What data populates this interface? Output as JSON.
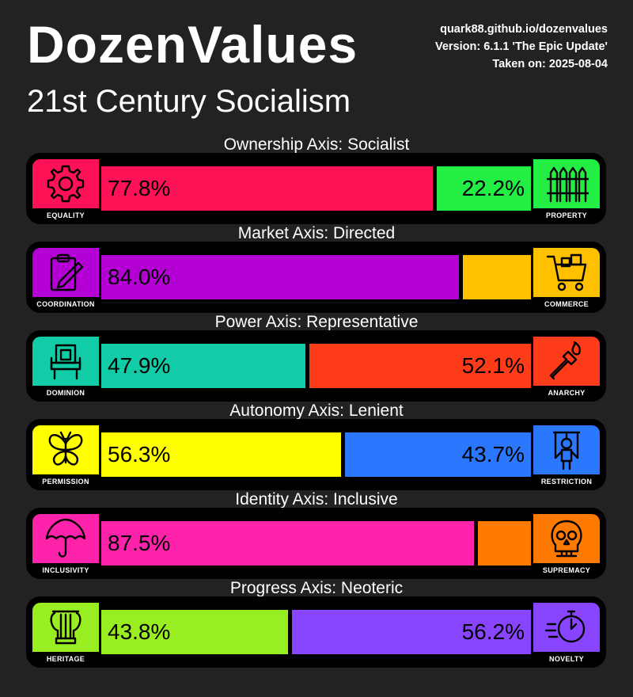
{
  "header": {
    "title": "DozenValues",
    "subtitle": "21st Century Socialism",
    "site": "quark88.github.io/dozenvalues",
    "version": "Version: 6.1.1 'The Epic Update'",
    "taken": "Taken on: 2025-08-04"
  },
  "chart_data": {
    "type": "bar",
    "orientation": "horizontal-stacked-100",
    "axes": [
      {
        "label": "Ownership Axis: Socialist",
        "left": {
          "name": "EQUALITY",
          "value": 77.8,
          "text": "77.8%",
          "color": "#ff1155",
          "icon": "gear-icon"
        },
        "right": {
          "name": "PROPERTY",
          "value": 22.2,
          "text": "22.2%",
          "color": "#22ee44",
          "icon": "fence-icon"
        }
      },
      {
        "label": "Market Axis: Directed",
        "left": {
          "name": "COORDINATION",
          "value": 84.0,
          "text": "84.0%",
          "color": "#b400d4",
          "icon": "clipboard-icon"
        },
        "right": {
          "name": "COMMERCE",
          "value": 16.0,
          "text": "",
          "color": "#ffc000",
          "icon": "shopping-cart-icon"
        }
      },
      {
        "label": "Power Axis: Representative",
        "left": {
          "name": "DOMINION",
          "value": 47.9,
          "text": "47.9%",
          "color": "#11cca6",
          "icon": "throne-icon"
        },
        "right": {
          "name": "ANARCHY",
          "value": 52.1,
          "text": "52.1%",
          "color": "#ff3c1a",
          "icon": "molotov-icon"
        }
      },
      {
        "label": "Autonomy Axis: Lenient",
        "left": {
          "name": "PERMISSION",
          "value": 56.3,
          "text": "56.3%",
          "color": "#ffff00",
          "icon": "butterfly-icon"
        },
        "right": {
          "name": "RESTRICTION",
          "value": 43.7,
          "text": "43.7%",
          "color": "#2b78ff",
          "icon": "puppet-icon"
        }
      },
      {
        "label": "Identity Axis: Inclusive",
        "left": {
          "name": "INCLUSIVITY",
          "value": 87.5,
          "text": "87.5%",
          "color": "#ff22aa",
          "icon": "umbrella-icon"
        },
        "right": {
          "name": "SUPREMACY",
          "value": 12.5,
          "text": "",
          "color": "#ff7a00",
          "icon": "skull-icon"
        }
      },
      {
        "label": "Progress Axis: Neoteric",
        "left": {
          "name": "HERITAGE",
          "value": 43.8,
          "text": "43.8%",
          "color": "#99ee22",
          "icon": "lyre-icon"
        },
        "right": {
          "name": "NOVELTY",
          "value": 56.2,
          "text": "56.2%",
          "color": "#8844ff",
          "icon": "stopwatch-icon"
        }
      }
    ]
  }
}
